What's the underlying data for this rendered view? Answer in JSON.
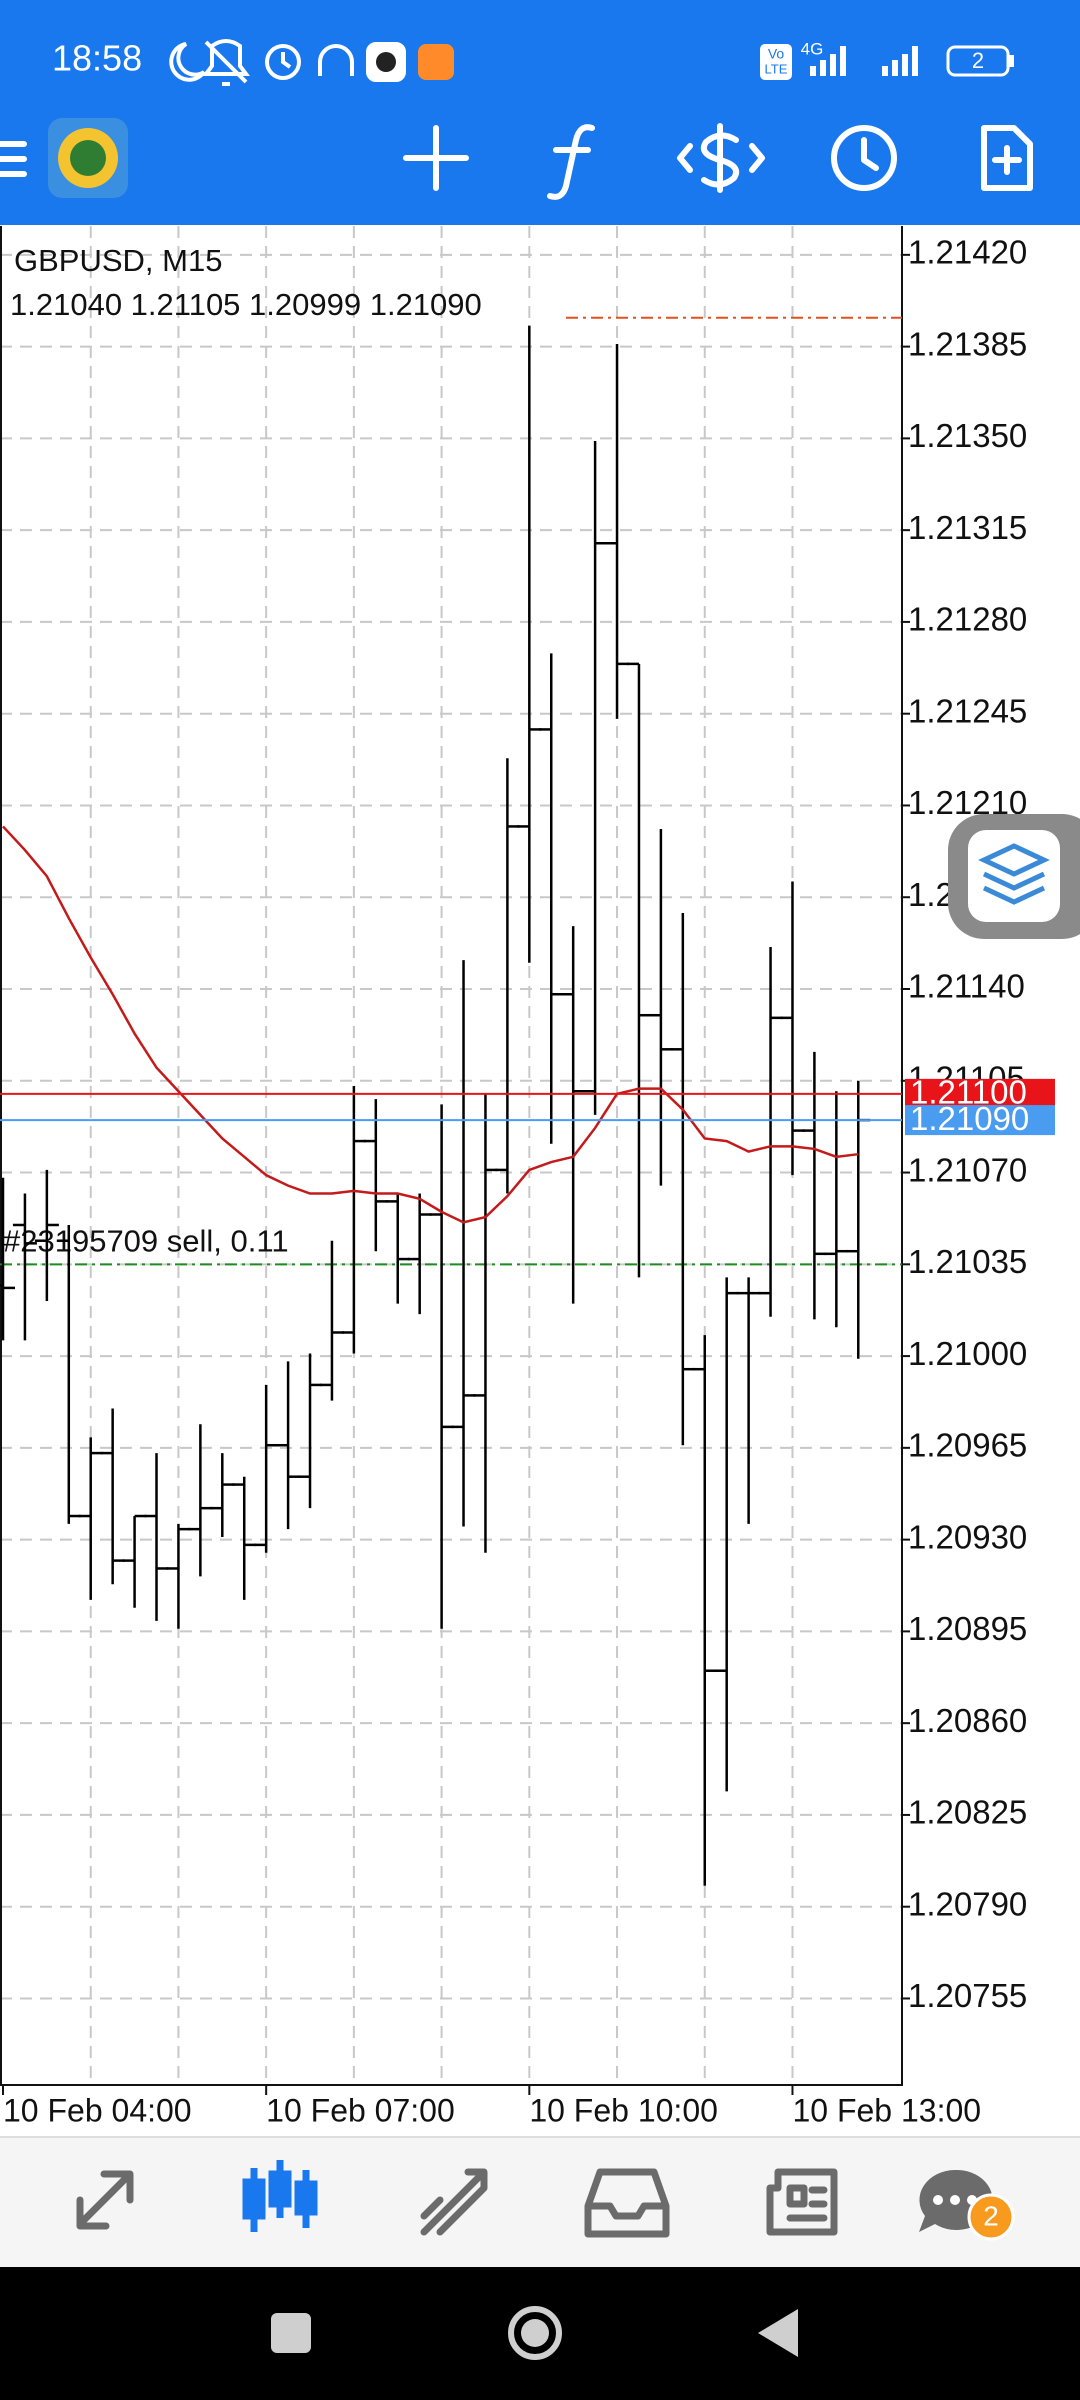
{
  "status_bar": {
    "time": "18:58",
    "volte": [
      "Vo",
      "LTE"
    ],
    "network": "4G",
    "battery": "2"
  },
  "chat_badge": "2",
  "chart_data": {
    "type": "ohlc",
    "title": "GBPUSD, M15",
    "info_line": "1.21040 1.21105 1.20999 1.21090",
    "categories": [
      "10 Feb 04:00",
      null,
      null,
      null,
      null,
      null,
      null,
      null,
      null,
      null,
      null,
      null,
      "10 Feb 07:00",
      null,
      null,
      null,
      null,
      null,
      null,
      null,
      null,
      null,
      null,
      null,
      "10 Feb 10:00",
      null,
      null,
      null,
      null,
      null,
      null,
      null,
      null,
      null,
      null,
      null,
      "10 Feb 13:00",
      null,
      null,
      null
    ],
    "open": [
      1.21027,
      1.2105,
      1.21044,
      1.21044,
      1.20939,
      1.20963,
      1.20922,
      1.20939,
      1.20919,
      1.20934,
      1.20942,
      1.20951,
      1.20928,
      1.20966,
      1.20954,
      1.20989,
      1.21009,
      1.21082,
      1.21059,
      1.21037,
      1.21054,
      1.20973,
      1.20985,
      1.21071,
      1.21202,
      1.21239,
      1.21138,
      1.21101,
      1.2131,
      1.21264,
      1.2113,
      1.21117,
      1.20995,
      1.2088,
      1.21024,
      1.21024,
      1.21129,
      1.21086,
      1.21039,
      1.2104
    ],
    "high": [
      1.21068,
      1.21062,
      1.21071,
      1.2105,
      1.20969,
      1.2098,
      1.20939,
      1.20963,
      1.20936,
      1.20974,
      1.20963,
      1.20954,
      1.20989,
      1.20998,
      1.21001,
      1.21044,
      1.21103,
      1.21098,
      1.21062,
      1.21062,
      1.21096,
      1.21151,
      1.211,
      1.21228,
      1.21393,
      1.21268,
      1.21164,
      1.21349,
      1.21386,
      1.21264,
      1.21201,
      1.21169,
      1.21008,
      1.2103,
      1.2103,
      1.21156,
      1.21181,
      1.21116,
      1.21101,
      1.21105
    ],
    "low": [
      1.21006,
      1.21006,
      1.21021,
      1.20936,
      1.20907,
      1.20913,
      1.20904,
      1.20899,
      1.20896,
      1.20916,
      1.20931,
      1.20907,
      1.20925,
      1.20934,
      1.20942,
      1.20983,
      1.21001,
      1.2104,
      1.2102,
      1.21016,
      1.20896,
      1.20935,
      1.20925,
      1.21062,
      1.2115,
      1.21081,
      1.2102,
      1.21092,
      1.21243,
      1.2103,
      1.21065,
      1.20966,
      1.20798,
      1.20834,
      1.20936,
      1.21015,
      1.21069,
      1.21014,
      1.21011,
      1.20999
    ],
    "close": [
      1.21026,
      1.21043,
      1.2105,
      1.20939,
      1.20963,
      1.20922,
      1.20939,
      1.20919,
      1.20934,
      1.20942,
      1.20951,
      1.20928,
      1.20966,
      1.20954,
      1.20989,
      1.21009,
      1.21082,
      1.21059,
      1.21037,
      1.21054,
      1.20973,
      1.20985,
      1.21071,
      1.21202,
      1.21239,
      1.21138,
      1.21101,
      1.2131,
      1.21264,
      1.2113,
      1.21117,
      1.20995,
      1.2088,
      1.21024,
      1.21024,
      1.21129,
      1.21086,
      1.21039,
      1.2104,
      1.2109
    ],
    "color": "#000000",
    "ma": {
      "color": "#c41a1a",
      "values": [
        1.21202,
        1.21193,
        1.21183,
        1.21167,
        1.21152,
        1.21138,
        1.21123,
        1.2111,
        1.21101,
        1.21092,
        1.21083,
        1.21076,
        1.21069,
        1.21065,
        1.21062,
        1.21062,
        1.21063,
        1.21062,
        1.21062,
        1.2106,
        1.21055,
        1.21051,
        1.21053,
        1.21061,
        1.21071,
        1.21074,
        1.21076,
        1.21087,
        1.211,
        1.21102,
        1.21102,
        1.21094,
        1.21083,
        1.21082,
        1.21078,
        1.2108,
        1.2108,
        1.21079,
        1.21076,
        1.21077
      ]
    },
    "ylim": [
      1.20722,
      1.21431
    ],
    "yticks": [
      {
        "value": 1.2142,
        "label": "1.21420"
      },
      {
        "value": 1.21385,
        "label": "1.21385"
      },
      {
        "value": 1.2135,
        "label": "1.21350"
      },
      {
        "value": 1.21315,
        "label": "1.21315"
      },
      {
        "value": 1.2128,
        "label": "1.21280"
      },
      {
        "value": 1.21245,
        "label": "1.21245"
      },
      {
        "value": 1.2121,
        "label": "1.21210"
      },
      {
        "value": 1.21175,
        "label": "1.21175"
      },
      {
        "value": 1.2114,
        "label": "1.21140"
      },
      {
        "value": 1.21105,
        "label": "1.21105"
      },
      {
        "value": 1.2107,
        "label": "1.21070"
      },
      {
        "value": 1.21035,
        "label": "1.21035"
      },
      {
        "value": 1.21,
        "label": "1.21000"
      },
      {
        "value": 1.20965,
        "label": "1.20965"
      },
      {
        "value": 1.2093,
        "label": "1.20930"
      },
      {
        "value": 1.20895,
        "label": "1.20895"
      },
      {
        "value": 1.2086,
        "label": "1.20860"
      },
      {
        "value": 1.20825,
        "label": "1.20825"
      },
      {
        "value": 1.2079,
        "label": "1.20790"
      },
      {
        "value": 1.20755,
        "label": "1.20755"
      }
    ],
    "grid": true,
    "ask": {
      "value": 1.211,
      "label": "1.21100",
      "color": "#e8141a"
    },
    "bid": {
      "value": 1.2109,
      "label": "1.21090",
      "color": "#4a9cf0"
    },
    "order": {
      "value": 1.21035,
      "label": "#23195709 sell, 0.11",
      "color": "#1e8c1e"
    },
    "level": {
      "value": 1.21396,
      "color": "#e0501e"
    }
  }
}
